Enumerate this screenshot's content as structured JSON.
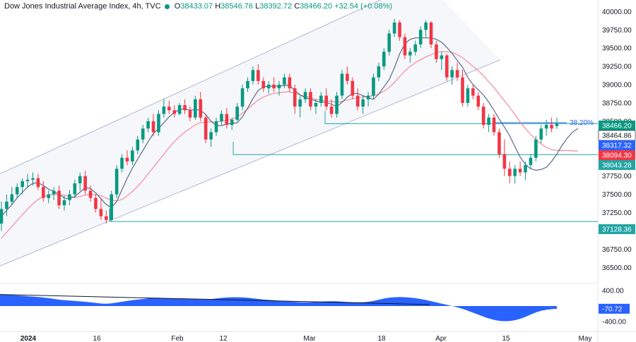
{
  "header": {
    "symbol": "Dow Jones Industrial Average Index, 4h, TVC",
    "o_label": "O",
    "o_value": "38433.07",
    "h_label": "H",
    "h_value": "38546.76",
    "l_label": "L",
    "l_value": "38392.72",
    "c_label": "C",
    "c_value": "38466.20",
    "change": "+32.54 (+0.08%)"
  },
  "colors": {
    "up": "#089981",
    "down": "#f23645",
    "ma_fast": "#5b6b89",
    "ma_slow": "#f28b9b",
    "channel": "#aeb7d6",
    "level": "#22a4a4",
    "oscillator": "#2962ff",
    "fib": "#2962ff"
  },
  "chart_data": [
    {
      "type": "candlestick",
      "title": "Dow Jones Industrial Average Index, 4h, TVC",
      "ylim": [
        36300,
        40100
      ],
      "y_ticks": [
        "40000.00",
        "39750.00",
        "39500.00",
        "39250.00",
        "39000.00",
        "38750.00",
        "38500.00",
        "37750.00",
        "37500.00",
        "37250.00",
        "37000.00",
        "36750.00",
        "36500.00"
      ],
      "x_ticks": [
        "2024",
        "16",
        "Feb",
        "12",
        "Mar",
        "18",
        "Apr",
        "15",
        "May"
      ],
      "price_tags": [
        {
          "label": "38466.20",
          "color": "#089981"
        },
        {
          "label": "38464.86",
          "color": "#ffffff"
        },
        {
          "label": "38317.32",
          "color": "#2962ff"
        },
        {
          "label": "38094.30",
          "color": "#f23645"
        },
        {
          "label": "38043.28",
          "color": "#22a4a4"
        },
        {
          "label": "37128.36",
          "color": "#22a4a4"
        }
      ],
      "horizontal_levels": [
        38466.2,
        38043.28,
        37128.36
      ],
      "fib_label": "38.20%",
      "ohlc": [
        [
          37100,
          37400,
          37000,
          37300
        ],
        [
          37300,
          37500,
          37200,
          37400
        ],
        [
          37400,
          37600,
          37350,
          37500
        ],
        [
          37500,
          37650,
          37450,
          37600
        ],
        [
          37600,
          37720,
          37500,
          37680
        ],
        [
          37680,
          37780,
          37600,
          37700
        ],
        [
          37700,
          37800,
          37620,
          37720
        ],
        [
          37720,
          37780,
          37560,
          37600
        ],
        [
          37600,
          37680,
          37400,
          37450
        ],
        [
          37450,
          37550,
          37380,
          37500
        ],
        [
          37500,
          37600,
          37420,
          37550
        ],
        [
          37550,
          37620,
          37300,
          37350
        ],
        [
          37350,
          37480,
          37280,
          37420
        ],
        [
          37420,
          37560,
          37350,
          37500
        ],
        [
          37500,
          37700,
          37450,
          37650
        ],
        [
          37650,
          37800,
          37550,
          37750
        ],
        [
          37750,
          37820,
          37500,
          37550
        ],
        [
          37550,
          37620,
          37400,
          37450
        ],
        [
          37450,
          37500,
          37250,
          37300
        ],
        [
          37300,
          37450,
          37150,
          37200
        ],
        [
          37200,
          37280,
          37100,
          37150
        ],
        [
          37150,
          37550,
          37130,
          37500
        ],
        [
          37500,
          37900,
          37450,
          37850
        ],
        [
          37850,
          38050,
          37800,
          38000
        ],
        [
          38000,
          38100,
          37900,
          37950
        ],
        [
          37950,
          38150,
          37900,
          38100
        ],
        [
          38100,
          38300,
          38050,
          38250
        ],
        [
          38250,
          38450,
          38200,
          38400
        ],
        [
          38400,
          38550,
          38350,
          38500
        ],
        [
          38500,
          38600,
          38300,
          38350
        ],
        [
          38350,
          38650,
          38300,
          38600
        ],
        [
          38600,
          38800,
          38550,
          38700
        ],
        [
          38700,
          38780,
          38600,
          38650
        ],
        [
          38650,
          38720,
          38550,
          38600
        ],
        [
          38600,
          38750,
          38580,
          38720
        ],
        [
          38720,
          38800,
          38600,
          38650
        ],
        [
          38650,
          38700,
          38500,
          38550
        ],
        [
          38550,
          38850,
          38520,
          38800
        ],
        [
          38800,
          38900,
          38500,
          38550
        ],
        [
          38550,
          38600,
          38200,
          38250
        ],
        [
          38250,
          38400,
          38150,
          38350
        ],
        [
          38350,
          38550,
          38300,
          38500
        ],
        [
          38500,
          38650,
          38450,
          38600
        ],
        [
          38600,
          38680,
          38400,
          38450
        ],
        [
          38450,
          38550,
          38380,
          38520
        ],
        [
          38520,
          38750,
          38500,
          38700
        ],
        [
          38700,
          39000,
          38650,
          38950
        ],
        [
          38950,
          39100,
          38900,
          39050
        ],
        [
          39050,
          39250,
          39000,
          39200
        ],
        [
          39200,
          39280,
          39000,
          39050
        ],
        [
          39050,
          39100,
          38900,
          38950
        ],
        [
          38950,
          39050,
          38880,
          39000
        ],
        [
          39000,
          39100,
          38900,
          38950
        ],
        [
          38950,
          39050,
          38850,
          39000
        ],
        [
          39000,
          39150,
          38950,
          39100
        ],
        [
          39100,
          39150,
          38900,
          38950
        ],
        [
          38950,
          39000,
          38600,
          38700
        ],
        [
          38700,
          38850,
          38550,
          38800
        ],
        [
          38800,
          38950,
          38750,
          38900
        ],
        [
          38900,
          38950,
          38650,
          38700
        ],
        [
          38700,
          38800,
          38600,
          38750
        ],
        [
          38750,
          38900,
          38700,
          38850
        ],
        [
          38850,
          38950,
          38650,
          38700
        ],
        [
          38700,
          38800,
          38550,
          38600
        ],
        [
          38600,
          38900,
          38550,
          38850
        ],
        [
          38850,
          39200,
          38800,
          39150
        ],
        [
          39150,
          39250,
          39000,
          39050
        ],
        [
          39050,
          39100,
          38800,
          38850
        ],
        [
          38850,
          38950,
          38650,
          38700
        ],
        [
          38700,
          38850,
          38600,
          38800
        ],
        [
          38800,
          38900,
          38700,
          38850
        ],
        [
          38850,
          39150,
          38800,
          39100
        ],
        [
          39100,
          39300,
          39050,
          39250
        ],
        [
          39250,
          39500,
          39200,
          39450
        ],
        [
          39450,
          39750,
          39400,
          39700
        ],
        [
          39700,
          39900,
          39650,
          39850
        ],
        [
          39850,
          39880,
          39600,
          39650
        ],
        [
          39650,
          39700,
          39350,
          39400
        ],
        [
          39400,
          39500,
          39300,
          39450
        ],
        [
          39450,
          39600,
          39400,
          39550
        ],
        [
          39550,
          39800,
          39500,
          39750
        ],
        [
          39750,
          39880,
          39650,
          39850
        ],
        [
          39850,
          39870,
          39500,
          39550
        ],
        [
          39550,
          39600,
          39300,
          39350
        ],
        [
          39350,
          39450,
          39200,
          39400
        ],
        [
          39400,
          39420,
          39050,
          39100
        ],
        [
          39100,
          39250,
          39000,
          39200
        ],
        [
          39200,
          39300,
          39050,
          39100
        ],
        [
          39100,
          39200,
          38700,
          38750
        ],
        [
          38750,
          39000,
          38700,
          38950
        ],
        [
          38950,
          39000,
          38800,
          38850
        ],
        [
          38850,
          38900,
          38650,
          38700
        ],
        [
          38700,
          38750,
          38400,
          38450
        ],
        [
          38450,
          38600,
          38350,
          38550
        ],
        [
          38550,
          38600,
          38300,
          38350
        ],
        [
          38350,
          38400,
          38000,
          38050
        ],
        [
          38050,
          38250,
          37750,
          37850
        ],
        [
          37850,
          37950,
          37650,
          37750
        ],
        [
          37750,
          37900,
          37650,
          37850
        ],
        [
          37850,
          37950,
          37750,
          37800
        ],
        [
          37800,
          37950,
          37700,
          37900
        ],
        [
          37900,
          38050,
          37850,
          38000
        ],
        [
          38000,
          38300,
          37950,
          38250
        ],
        [
          38250,
          38450,
          38200,
          38400
        ],
        [
          38400,
          38520,
          38300,
          38450
        ],
        [
          38450,
          38550,
          38350,
          38400
        ],
        [
          38433.07,
          38546.76,
          38392.72,
          38466.2
        ]
      ],
      "ma_fast": [
        37200,
        37280,
        37360,
        37450,
        37530,
        37600,
        37650,
        37660,
        37620,
        37570,
        37540,
        37500,
        37450,
        37440,
        37470,
        37530,
        37590,
        37580,
        37520,
        37440,
        37360,
        37320,
        37400,
        37560,
        37720,
        37860,
        37980,
        38100,
        38220,
        38330,
        38400,
        38480,
        38560,
        38620,
        38660,
        38670,
        38650,
        38660,
        38650,
        38590,
        38500,
        38440,
        38440,
        38460,
        38470,
        38480,
        38560,
        38680,
        38810,
        38920,
        38970,
        38980,
        38980,
        38980,
        38990,
        38990,
        38920,
        38860,
        38820,
        38800,
        38780,
        38760,
        38760,
        38730,
        38700,
        38760,
        38830,
        38880,
        38880,
        38850,
        38820,
        38800,
        38870,
        38970,
        39070,
        39230,
        39420,
        39560,
        39620,
        39640,
        39640,
        39640,
        39640,
        39620,
        39580,
        39510,
        39430,
        39330,
        39240,
        39100,
        39000,
        38930,
        38860,
        38760,
        38650,
        38530,
        38420,
        38300,
        38150,
        38010,
        37910,
        37850,
        37830,
        37840,
        37870,
        37950,
        38050,
        38170,
        38270,
        38350,
        38400
      ],
      "ma_slow": [
        36900,
        36980,
        37060,
        37140,
        37220,
        37300,
        37370,
        37430,
        37470,
        37490,
        37500,
        37500,
        37490,
        37470,
        37460,
        37470,
        37490,
        37500,
        37500,
        37480,
        37450,
        37420,
        37410,
        37430,
        37480,
        37540,
        37610,
        37690,
        37780,
        37870,
        37960,
        38050,
        38140,
        38220,
        38290,
        38350,
        38400,
        38450,
        38480,
        38490,
        38490,
        38490,
        38500,
        38510,
        38530,
        38560,
        38610,
        38670,
        38730,
        38790,
        38830,
        38860,
        38880,
        38890,
        38900,
        38900,
        38880,
        38860,
        38840,
        38820,
        38800,
        38790,
        38780,
        38770,
        38760,
        38770,
        38790,
        38810,
        38820,
        38830,
        38840,
        38850,
        38870,
        38910,
        38960,
        39030,
        39110,
        39190,
        39250,
        39300,
        39340,
        39380,
        39410,
        39440,
        39450,
        39450,
        39440,
        39410,
        39370,
        39310,
        39250,
        39190,
        39120,
        39040,
        38960,
        38870,
        38780,
        38690,
        38590,
        38490,
        38400,
        38320,
        38250,
        38190,
        38140,
        38110,
        38100,
        38100,
        38100,
        38094,
        38094.3
      ]
    },
    {
      "type": "area",
      "title": "",
      "ylim": [
        -550,
        550
      ],
      "y_ticks": [
        "400.00",
        "-400.00"
      ],
      "value_tag": "-70.72",
      "values": [
        300,
        300,
        290,
        280,
        270,
        260,
        250,
        240,
        230,
        215,
        200,
        180,
        160,
        150,
        140,
        130,
        120,
        110,
        95,
        80,
        65,
        60,
        70,
        90,
        110,
        130,
        150,
        165,
        180,
        195,
        210,
        215,
        210,
        205,
        200,
        195,
        190,
        185,
        180,
        175,
        170,
        175,
        185,
        200,
        215,
        225,
        230,
        230,
        225,
        215,
        200,
        185,
        170,
        160,
        150,
        140,
        130,
        120,
        110,
        100,
        95,
        95,
        100,
        110,
        120,
        125,
        125,
        120,
        110,
        100,
        95,
        95,
        100,
        115,
        140,
        170,
        200,
        220,
        230,
        235,
        230,
        220,
        205,
        185,
        160,
        130,
        100,
        70,
        40,
        10,
        -20,
        -60,
        -100,
        -150,
        -200,
        -250,
        -300,
        -340,
        -370,
        -390,
        -395,
        -385,
        -360,
        -320,
        -270,
        -210,
        -160,
        -120,
        -95,
        -80,
        -70.72
      ],
      "trend_line": [
        300,
        0
      ]
    }
  ]
}
